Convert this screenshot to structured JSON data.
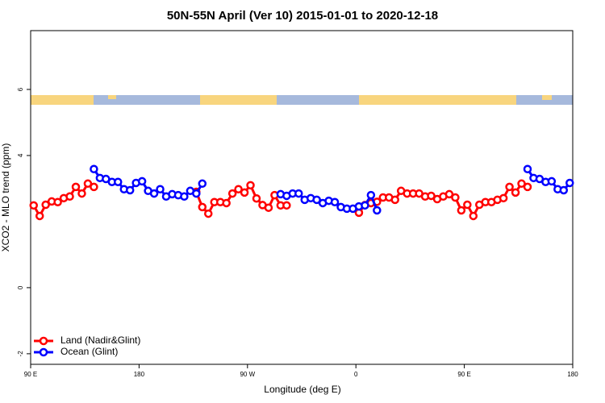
{
  "chart_data": {
    "type": "line",
    "title": "50N-55N April (Ver 10)   2015-01-01 to 2020-12-18",
    "x_label": "Longitude (deg E)",
    "y_label": "XCO2 - MLO trend (ppm)",
    "xlim": [
      90,
      540
    ],
    "ylim": [
      -2.32,
      7.78
    ],
    "xticks": [
      {
        "value": 90,
        "label": "90 E"
      },
      {
        "value": 180,
        "label": "180"
      },
      {
        "value": 270,
        "label": "90 W"
      },
      {
        "value": 360,
        "label": "0"
      },
      {
        "value": 450,
        "label": "90 E"
      },
      {
        "value": 540,
        "label": "180"
      }
    ],
    "yticks": [
      -2,
      0,
      4,
      6
    ],
    "legend": "bottom-left",
    "x": [
      92.5,
      97.5,
      102.5,
      107.5,
      112.5,
      117.5,
      122.5,
      127.5,
      132.5,
      137.5,
      142.5,
      147.5,
      152.5,
      157.5,
      162.5,
      167.5,
      172.5,
      177.5,
      182.5,
      187.5,
      192.5,
      197.5,
      202.5,
      207.5,
      212.5,
      217.5,
      222.5,
      227.5,
      232.5,
      237.5,
      242.5,
      247.5,
      252.5,
      257.5,
      262.5,
      267.5,
      272.5,
      277.5,
      282.5,
      287.5,
      292.5,
      297.5,
      302.5,
      307.5,
      312.5,
      317.5,
      322.5,
      327.5,
      332.5,
      337.5,
      342.5,
      347.5,
      352.5,
      357.5,
      362.5,
      367.5,
      372.5,
      377.5,
      382.5,
      387.5,
      392.5,
      397.5,
      402.5,
      407.5,
      412.5,
      417.5,
      422.5,
      427.5,
      432.5,
      437.5,
      442.5,
      447.5,
      452.5,
      457.5,
      462.5,
      467.5,
      472.5,
      477.5,
      482.5,
      487.5,
      492.5,
      497.5,
      502.5,
      507.5,
      512.5,
      517.5,
      522.5,
      527.5,
      532.5,
      537.5
    ],
    "series": [
      {
        "name": "Land (Nadir&Glint)",
        "color": "#ff0000",
        "values": [
          2.49,
          2.17,
          2.51,
          2.61,
          2.59,
          2.71,
          2.76,
          3.05,
          2.85,
          3.15,
          3.05,
          null,
          null,
          null,
          null,
          null,
          null,
          null,
          null,
          null,
          null,
          null,
          null,
          null,
          null,
          null,
          null,
          2.9,
          2.44,
          2.24,
          2.59,
          2.59,
          2.56,
          2.85,
          2.98,
          2.88,
          3.1,
          2.7,
          2.5,
          2.42,
          2.8,
          2.49,
          2.49,
          null,
          null,
          null,
          null,
          null,
          null,
          null,
          null,
          null,
          null,
          null,
          2.27,
          2.5,
          2.56,
          2.6,
          2.73,
          2.73,
          2.66,
          2.93,
          2.85,
          2.85,
          2.85,
          2.76,
          2.78,
          2.68,
          2.76,
          2.83,
          2.73,
          2.34,
          2.51,
          2.17,
          2.51,
          2.59,
          2.59,
          2.66,
          2.71,
          3.05,
          2.88,
          3.15,
          3.05,
          null,
          null,
          null,
          null,
          null,
          null,
          null
        ]
      },
      {
        "name": "Ocean (Glint)",
        "color": "#0000ff",
        "values": [
          null,
          null,
          null,
          null,
          null,
          null,
          null,
          null,
          null,
          null,
          3.59,
          3.32,
          3.29,
          3.2,
          3.2,
          2.98,
          2.95,
          3.17,
          3.22,
          2.93,
          2.85,
          2.98,
          2.76,
          2.83,
          2.8,
          2.76,
          2.93,
          2.85,
          3.15,
          null,
          null,
          null,
          null,
          null,
          null,
          null,
          null,
          null,
          null,
          null,
          null,
          2.83,
          2.78,
          2.85,
          2.85,
          2.66,
          2.71,
          2.66,
          2.56,
          2.63,
          2.59,
          2.44,
          2.39,
          2.39,
          2.46,
          2.49,
          2.8,
          2.34,
          null,
          null,
          null,
          null,
          null,
          null,
          null,
          null,
          null,
          null,
          null,
          null,
          null,
          null,
          null,
          null,
          null,
          null,
          null,
          null,
          null,
          null,
          null,
          null,
          3.59,
          3.32,
          3.29,
          3.2,
          3.22,
          2.98,
          2.95,
          3.17
        ]
      }
    ]
  }
}
